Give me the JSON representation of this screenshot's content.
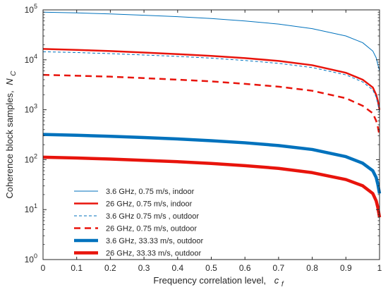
{
  "chart_data": {
    "type": "line",
    "xlabel_text": "Frequency correlation level,",
    "xlabel_symbol": "c",
    "xlabel_sub": "f",
    "ylabel_text": "Coherence block samples,",
    "ylabel_symbol": "N",
    "ylabel_sub": "C",
    "xlim": [
      0,
      1
    ],
    "ylim": [
      1,
      100000
    ],
    "yscale": "log",
    "grid": false,
    "legend_position": "bottom-left",
    "x_ticks": [
      "0",
      "0.1",
      "0.2",
      "0.3",
      "0.4",
      "0.5",
      "0.6",
      "0.7",
      "0.8",
      "0.9",
      "1"
    ],
    "y_ticks": [
      {
        "base": "10",
        "exp": "0"
      },
      {
        "base": "10",
        "exp": "1"
      },
      {
        "base": "10",
        "exp": "2"
      },
      {
        "base": "10",
        "exp": "3"
      },
      {
        "base": "10",
        "exp": "4"
      },
      {
        "base": "10",
        "exp": "5"
      }
    ],
    "x": [
      0,
      0.1,
      0.2,
      0.3,
      0.4,
      0.5,
      0.6,
      0.7,
      0.8,
      0.9,
      0.95,
      0.98,
      0.99,
      0.995,
      1.0
    ],
    "series": [
      {
        "name": "3.6 GHz, 0.75 m/s, indoor",
        "color": "#0072BD",
        "width": "thin",
        "dash": "solid",
        "values": [
          90000,
          87000,
          83000,
          78000,
          73000,
          67000,
          60000,
          52000,
          42000,
          30000,
          22000,
          15000,
          11000,
          8000,
          6000
        ]
      },
      {
        "name": "26 GHz, 0.75 m/s, indoor",
        "color": "#E8140C",
        "width": "medium",
        "dash": "solid",
        "values": [
          16500,
          15800,
          15000,
          14000,
          13000,
          12000,
          10800,
          9500,
          7800,
          5500,
          4000,
          2800,
          2000,
          1500,
          1000
        ]
      },
      {
        "name": "3.6 GHz 0.75 m/s , outdoor",
        "color": "#0072BD",
        "width": "thin",
        "dash": "dashed",
        "values": [
          14500,
          14000,
          13300,
          12500,
          11700,
          10800,
          9700,
          8500,
          7000,
          5000,
          3600,
          2500,
          1800,
          1300,
          900
        ]
      },
      {
        "name": "26 GHz, 0.75 m/s, outdoor",
        "color": "#E8140C",
        "width": "medium",
        "dash": "dashed",
        "values": [
          5000,
          4800,
          4600,
          4300,
          4000,
          3700,
          3300,
          2900,
          2400,
          1700,
          1200,
          850,
          600,
          450,
          300
        ]
      },
      {
        "name": "3.6 GHz, 33.33 m/s, outdoor",
        "color": "#0072BD",
        "width": "thick",
        "dash": "solid",
        "values": [
          320,
          308,
          294,
          278,
          260,
          240,
          218,
          192,
          160,
          115,
          85,
          60,
          44,
          32,
          21
        ]
      },
      {
        "name": "26 GHz, 33.33 m/s, outdoor",
        "color": "#E8140C",
        "width": "thick",
        "dash": "solid",
        "values": [
          112,
          108,
          103,
          97,
          91,
          84,
          76,
          67,
          55,
          40,
          30,
          21,
          15,
          11,
          7
        ]
      }
    ]
  }
}
